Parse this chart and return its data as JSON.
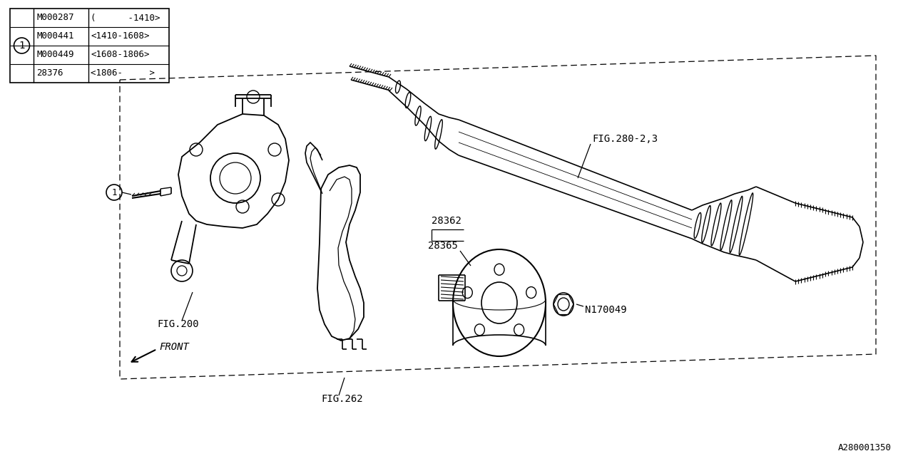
{
  "bg_color": "#ffffff",
  "line_color": "#000000",
  "diagram_id": "A280001350",
  "table": {
    "col1": [
      "M000287",
      "M000441",
      "M000449",
      "28376"
    ],
    "col2": [
      "(      -1410>",
      "<1410-1608>",
      "<1608-1806>",
      "<1806-     >"
    ],
    "circle_num": "1"
  },
  "labels": {
    "fig200": "FIG.200",
    "fig262": "FIG.262",
    "fig280": "FIG.280-2,3",
    "part28362": "28362",
    "part28365": "28365",
    "partN170049": "N170049",
    "front": "FRONT"
  },
  "font_family": "monospace"
}
